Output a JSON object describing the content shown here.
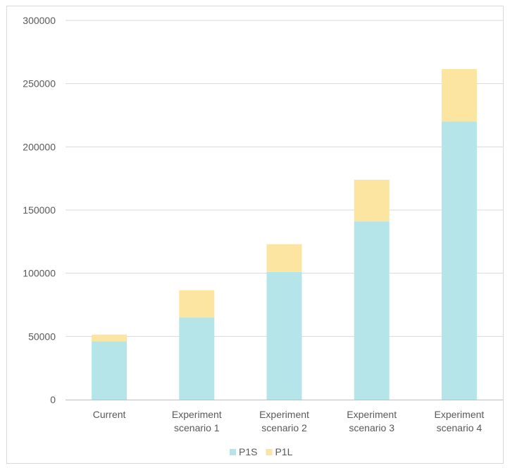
{
  "chart_data": {
    "type": "bar",
    "stacked": true,
    "categories": [
      [
        "Current"
      ],
      [
        "Experiment",
        "scenario 1"
      ],
      [
        "Experiment",
        "scenario 2"
      ],
      [
        "Experiment",
        "scenario 3"
      ],
      [
        "Experiment",
        "scenario 4"
      ]
    ],
    "series": [
      {
        "name": "P1S",
        "values": [
          46000,
          65000,
          101000,
          141000,
          220000
        ]
      },
      {
        "name": "P1L",
        "values": [
          5500,
          21500,
          22000,
          33000,
          41500
        ]
      }
    ],
    "ylim": [
      0,
      300000
    ],
    "yticks": [
      "0",
      "50000",
      "100000",
      "150000",
      "200000",
      "250000",
      "300000"
    ],
    "title": "",
    "xlabel": "",
    "ylabel": "",
    "grid": true,
    "legend_position": "bottom"
  },
  "colors": {
    "P1S": "#b5e5e8",
    "P1L": "#fce5a0",
    "grid": "#d9d9d9",
    "axis": "#bfbfbf",
    "text": "#595959"
  }
}
